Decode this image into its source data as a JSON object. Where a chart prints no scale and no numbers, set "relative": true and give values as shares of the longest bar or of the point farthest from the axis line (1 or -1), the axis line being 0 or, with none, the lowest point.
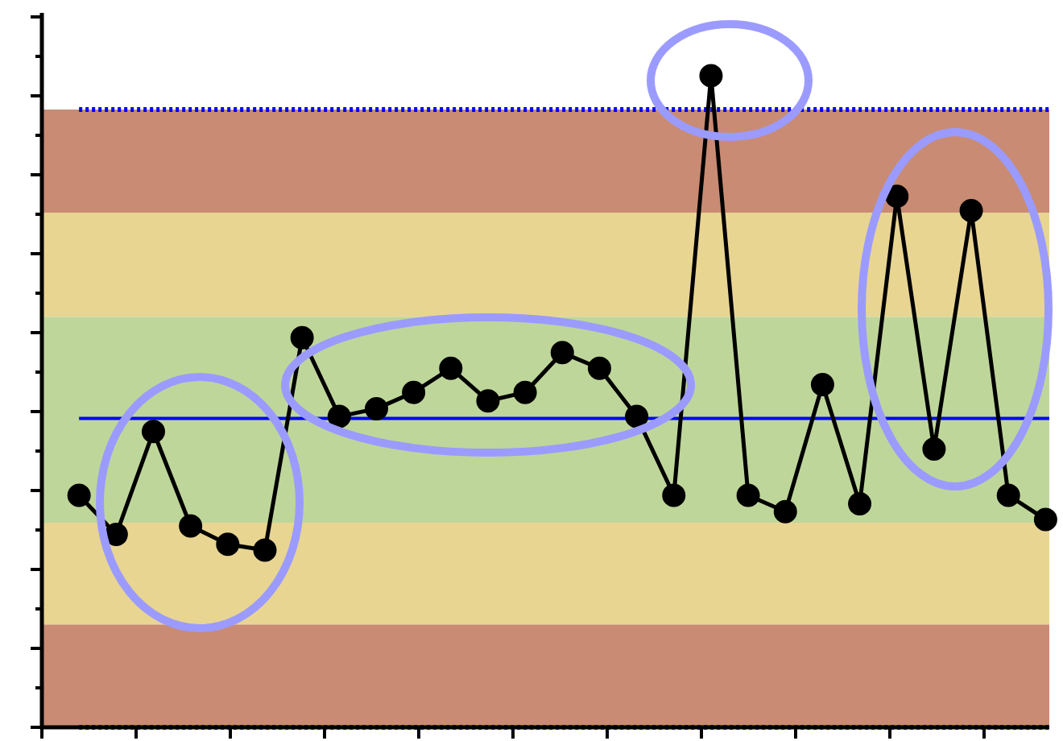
{
  "chart_data": {
    "type": "line",
    "relative": true,
    "categories": [
      null,
      null,
      null,
      null,
      null,
      null,
      null,
      null,
      null,
      null,
      null,
      null,
      null,
      null,
      null,
      null,
      null,
      null,
      null,
      null,
      null,
      null,
      null,
      null,
      null,
      null,
      null
    ],
    "series": [
      {
        "color": "#000000",
        "values": [
          0.356,
          0.296,
          0.454,
          0.309,
          0.281,
          0.272,
          0.598,
          0.477,
          0.489,
          0.514,
          0.551,
          0.501,
          0.514,
          0.575,
          0.551,
          0.477,
          0.356,
          1,
          0.356,
          0.331,
          0.526,
          0.343,
          0.815,
          0.427,
          0.793,
          0.356,
          0.319
        ]
      }
    ],
    "bands": [
      {
        "axis": "y",
        "from": 0,
        "to": 0.158,
        "color": "#c98b73"
      },
      {
        "axis": "y",
        "from": 0.158,
        "to": 0.314,
        "color": "#e8d592"
      },
      {
        "axis": "y",
        "from": 0.314,
        "to": 0.63,
        "color": "#bfd69b"
      },
      {
        "axis": "y",
        "from": 0.63,
        "to": 0.79,
        "color": "#e8d592"
      },
      {
        "axis": "y",
        "from": 0.79,
        "to": 0.948,
        "color": "#c98b73"
      }
    ],
    "ref_lines": [
      {
        "axis": "y",
        "value": 0.474,
        "color": "#0000ff",
        "line_style": "solid"
      },
      {
        "axis": "y",
        "value": 0.948,
        "color": "#0000ff",
        "line_style": "dotted"
      },
      {
        "axis": "y",
        "value": 0,
        "color": "#0000ff",
        "line_style": "dotted"
      }
    ],
    "marker": "circle",
    "line_style": "solid",
    "legend": false,
    "tick_labels": false
  }
}
